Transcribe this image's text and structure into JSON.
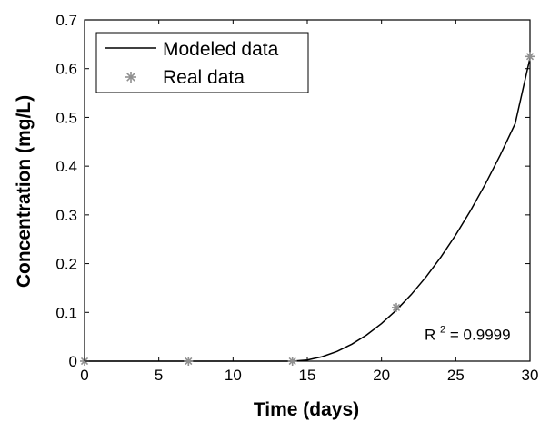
{
  "chart_data": {
    "type": "line",
    "xlabel": "Time (days)",
    "ylabel": "Concentration (mg/L)",
    "xlim": [
      0,
      30
    ],
    "ylim": [
      0,
      0.7
    ],
    "xticks": [
      0,
      5,
      10,
      15,
      20,
      25,
      30
    ],
    "yticks": [
      0,
      0.1,
      0.2,
      0.3,
      0.4,
      0.5,
      0.6,
      0.7
    ],
    "grid": false,
    "legend_position": "top-left",
    "series": [
      {
        "name": "Modeled data",
        "kind": "line",
        "color": "#000000",
        "x": [
          0,
          7,
          14,
          15,
          16,
          17,
          18,
          19,
          20,
          21,
          22,
          23,
          24,
          25,
          26,
          27,
          28,
          29,
          30
        ],
        "y": [
          0,
          0,
          0,
          0.0024,
          0.0091,
          0.0199,
          0.0348,
          0.0538,
          0.0771,
          0.1046,
          0.1365,
          0.1728,
          0.2136,
          0.259,
          0.309,
          0.3636,
          0.4229,
          0.4871,
          0.622
        ]
      },
      {
        "name": "Real data",
        "kind": "scatter",
        "marker": "asterisk",
        "color": "#909090",
        "x": [
          0,
          7,
          14,
          21,
          30
        ],
        "y": [
          0,
          0,
          0,
          0.11,
          0.625
        ]
      }
    ],
    "annotation": {
      "base": "R",
      "sup": "2",
      "rest": " = 0.9999",
      "x": 22.9,
      "y": 0.055
    }
  }
}
